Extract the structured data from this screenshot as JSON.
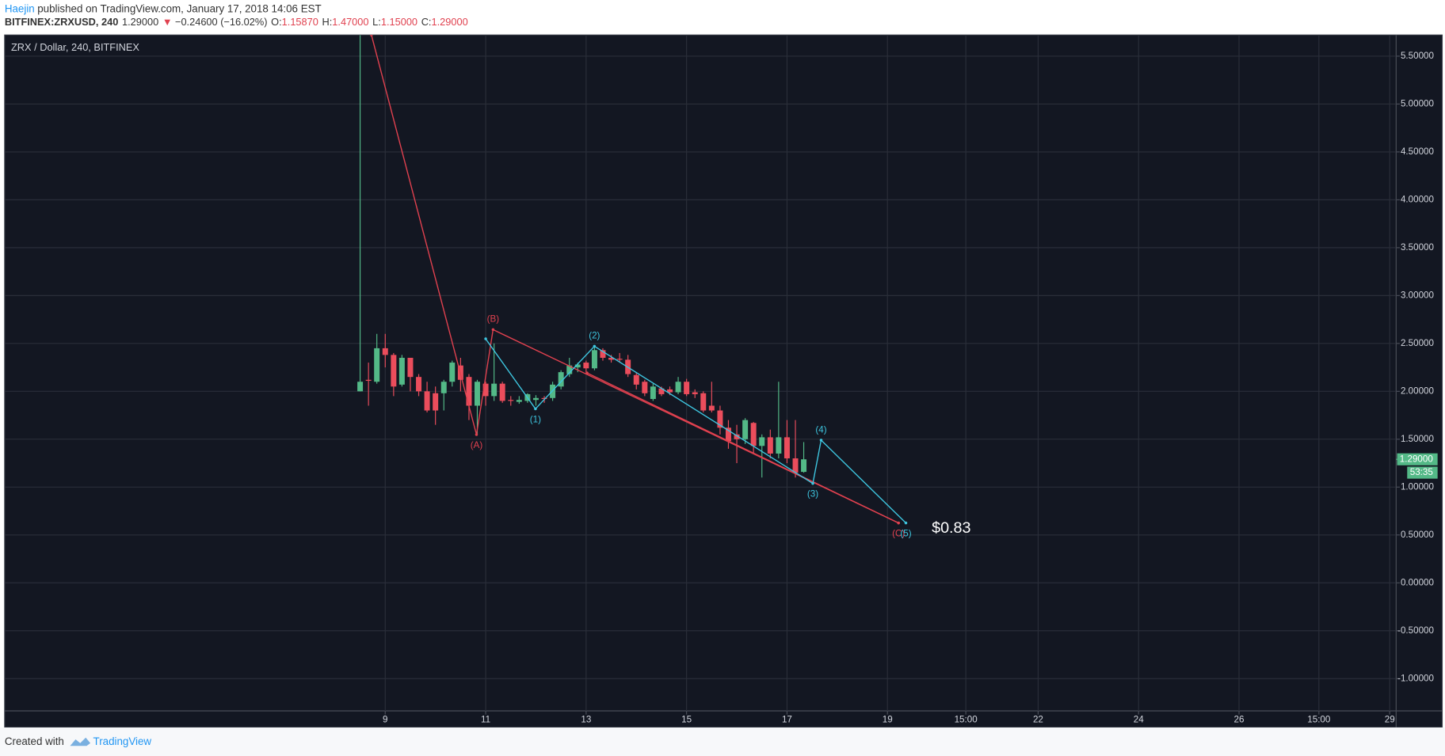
{
  "header": {
    "author": "Haejin",
    "published": "published on TradingView.com, January 17, 2018 14:06 EST",
    "symbol": "BITFINEX:ZRXUSD, 240",
    "price": "1.29000",
    "arrow": "▼",
    "change": "−0.24600 (−16.02%)",
    "ohlc": [
      {
        "label": "O:",
        "value": "1.15870"
      },
      {
        "label": "H:",
        "value": "1.47000"
      },
      {
        "label": "L:",
        "value": "1.15000"
      },
      {
        "label": "C:",
        "value": "1.29000"
      }
    ]
  },
  "chart_data": {
    "type": "candlestick",
    "title": "ZRX / Dollar, 240, BITFINEX",
    "x": [
      8.5,
      8.667,
      8.833,
      9,
      9.167,
      9.333,
      9.5,
      9.667,
      9.833,
      10,
      10.167,
      10.333,
      10.5,
      10.667,
      10.833,
      11,
      11.167,
      11.333,
      11.5,
      11.667,
      11.833,
      12,
      12.167,
      12.333,
      12.5,
      12.667,
      12.833,
      13,
      13.167,
      13.333,
      13.5,
      13.667,
      13.833,
      14,
      14.167,
      14.333,
      14.5,
      14.667,
      14.833,
      15,
      15.167,
      15.333,
      15.5,
      15.667,
      15.833,
      16,
      16.167,
      16.333,
      16.5,
      16.667,
      16.833,
      17,
      17.167,
      17.333
    ],
    "open": [
      2.0,
      2.12,
      2.1,
      2.45,
      2.38,
      2.07,
      2.35,
      2.15,
      2.0,
      1.98,
      1.98,
      2.1,
      2.27,
      2.15,
      1.85,
      2.08,
      1.95,
      2.08,
      1.91,
      1.89,
      1.9,
      1.91,
      1.93,
      1.93,
      2.05,
      2.18,
      2.25,
      2.3,
      2.24,
      2.43,
      2.35,
      2.34,
      2.33,
      2.17,
      2.1,
      1.92,
      2.03,
      2.02,
      1.99,
      2.1,
      1.99,
      1.98,
      1.85,
      1.8,
      1.62,
      1.55,
      1.5,
      1.67,
      1.43,
      1.52,
      1.35,
      1.52,
      1.3,
      1.1587
    ],
    "high": [
      5.72,
      2.3,
      2.6,
      2.6,
      2.4,
      2.38,
      2.35,
      2.18,
      2.1,
      2.05,
      2.12,
      2.32,
      2.35,
      2.18,
      2.12,
      2.1,
      2.5,
      2.1,
      1.95,
      1.95,
      1.98,
      1.96,
      1.95,
      2.1,
      2.22,
      2.35,
      2.3,
      2.32,
      2.48,
      2.45,
      2.38,
      2.4,
      2.38,
      2.2,
      2.12,
      2.08,
      2.05,
      2.05,
      2.15,
      2.13,
      2.02,
      2.0,
      2.1,
      1.85,
      1.7,
      1.65,
      1.72,
      1.68,
      1.55,
      1.6,
      2.1,
      1.7,
      1.7,
      1.47
    ],
    "low": [
      2.0,
      1.85,
      2.08,
      2.25,
      1.95,
      2.05,
      2.0,
      1.95,
      1.78,
      1.65,
      1.8,
      2.05,
      2.0,
      1.7,
      1.55,
      1.85,
      1.9,
      1.88,
      1.85,
      1.87,
      1.88,
      1.85,
      1.88,
      1.9,
      2.02,
      2.15,
      2.2,
      2.2,
      2.22,
      2.32,
      2.3,
      2.3,
      2.15,
      2.02,
      1.95,
      1.9,
      1.95,
      1.96,
      1.97,
      1.95,
      1.93,
      1.78,
      1.78,
      1.55,
      1.4,
      1.25,
      1.45,
      1.35,
      1.1,
      1.3,
      1.3,
      1.25,
      1.1,
      1.15
    ],
    "close": [
      2.1,
      2.11,
      2.45,
      2.38,
      2.05,
      2.35,
      2.15,
      2.0,
      1.8,
      1.8,
      2.1,
      2.3,
      2.12,
      1.85,
      2.1,
      1.95,
      2.08,
      1.9,
      1.9,
      1.91,
      1.97,
      1.93,
      1.92,
      2.07,
      2.2,
      2.27,
      2.28,
      2.24,
      2.43,
      2.35,
      2.33,
      2.33,
      2.18,
      2.07,
      1.98,
      2.05,
      1.97,
      1.99,
      2.1,
      1.97,
      1.97,
      1.8,
      1.8,
      1.62,
      1.48,
      1.5,
      1.7,
      1.43,
      1.52,
      1.35,
      1.52,
      1.3,
      1.15,
      1.29
    ],
    "up_color": "#53b987",
    "down_color": "#eb4d5c",
    "xlim": [
      1.422,
      29.128
    ],
    "ylim": [
      -1.337,
      5.721
    ],
    "xticks": [
      9,
      11,
      13,
      15,
      17,
      19,
      {
        "value": 20.56,
        "label": "15:00"
      },
      22,
      24,
      26,
      {
        "value": 27.59,
        "label": "15:00"
      },
      29
    ],
    "yticks": [
      {
        "value": 5.5,
        "label": "5.50000"
      },
      {
        "value": 5,
        "label": "5.00000"
      },
      {
        "value": 4.5,
        "label": "4.50000"
      },
      {
        "value": 4,
        "label": "4.00000"
      },
      {
        "value": 3.5,
        "label": "3.50000"
      },
      {
        "value": 3,
        "label": "3.00000"
      },
      {
        "value": 2.5,
        "label": "2.50000"
      },
      {
        "value": 2,
        "label": "2.00000"
      },
      {
        "value": 1.5,
        "label": "1.50000"
      },
      {
        "value": 1,
        "label": "1.00000"
      },
      {
        "value": 0.5,
        "label": "0.50000"
      },
      {
        "value": 0,
        "label": "0.00000"
      },
      {
        "value": -0.5,
        "label": "-0.50000"
      },
      {
        "value": -1,
        "label": "-1.00000"
      }
    ],
    "grid": true,
    "last_price": {
      "value": 1.29,
      "label": "1.29000"
    },
    "countdown": "53:35",
    "waves": [
      {
        "color": "#e0414f",
        "x": [
          8.725,
          10.817,
          11.147,
          19.22
        ],
        "y": [
          5.721,
          1.548,
          2.644,
          0.625
        ],
        "labels": [
          null,
          "(A)",
          "(B)",
          "(C)"
        ]
      },
      {
        "color": "#e0414f",
        "x": [
          13.018,
          19.22
        ],
        "y": [
          2.192,
          0.625
        ]
      },
      {
        "color": "#3ec6e0",
        "x": [
          11.0,
          11.991,
          13.165,
          17.514,
          17.679,
          19.367
        ],
        "y": [
          2.548,
          1.817,
          2.471,
          1.038,
          1.49,
          0.625
        ],
        "labels": [
          null,
          "(1)",
          "(2)",
          "(3)",
          "(4)",
          "(5)"
        ]
      }
    ],
    "target_label": "$0.83"
  },
  "footer": {
    "created": "Created with",
    "brand": "TradingView"
  }
}
